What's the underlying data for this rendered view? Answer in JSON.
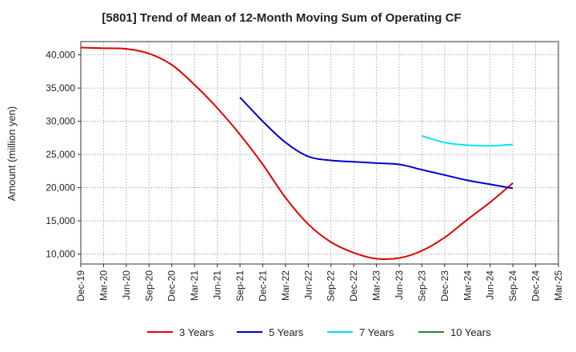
{
  "chart_data": {
    "type": "line",
    "title": "[5801]  Trend of Mean of 12-Month Moving Sum of Operating CF",
    "xlabel": "",
    "ylabel": "Amount (million yen)",
    "ylim": [
      8500,
      42000
    ],
    "yticks": [
      10000,
      15000,
      20000,
      25000,
      30000,
      35000,
      40000
    ],
    "ytick_labels": [
      "10,000",
      "15,000",
      "20,000",
      "25,000",
      "30,000",
      "35,000",
      "40,000"
    ],
    "categories": [
      "Dec-19",
      "Mar-20",
      "Jun-20",
      "Sep-20",
      "Dec-20",
      "Mar-21",
      "Jun-21",
      "Sep-21",
      "Dec-21",
      "Mar-22",
      "Jun-22",
      "Sep-22",
      "Dec-22",
      "Mar-23",
      "Jun-23",
      "Sep-23",
      "Dec-23",
      "Mar-24",
      "Jun-24",
      "Sep-24",
      "Dec-24",
      "Mar-25"
    ],
    "grid": true,
    "legend_position": "bottom",
    "series": [
      {
        "name": "3 Years",
        "color": "#e00000",
        "values": [
          41100,
          41000,
          40900,
          40200,
          38500,
          35500,
          32000,
          28000,
          23500,
          18500,
          14500,
          11800,
          10200,
          9300,
          9400,
          10500,
          12500,
          15200,
          17800,
          20700,
          null,
          null
        ]
      },
      {
        "name": "5 Years",
        "color": "#0000cc",
        "values": [
          null,
          null,
          null,
          null,
          null,
          null,
          null,
          33600,
          30000,
          26800,
          24700,
          24100,
          23900,
          23700,
          23500,
          22700,
          21900,
          21100,
          20500,
          19900,
          null,
          null
        ]
      },
      {
        "name": "7 Years",
        "color": "#00e5ee",
        "values": [
          null,
          null,
          null,
          null,
          null,
          null,
          null,
          null,
          null,
          null,
          null,
          null,
          null,
          null,
          null,
          27800,
          26800,
          26400,
          26300,
          26500,
          null,
          null
        ]
      },
      {
        "name": "10 Years",
        "color": "#228b22",
        "values": [
          null,
          null,
          null,
          null,
          null,
          null,
          null,
          null,
          null,
          null,
          null,
          null,
          null,
          null,
          null,
          null,
          null,
          null,
          null,
          null,
          null,
          null
        ]
      }
    ]
  }
}
